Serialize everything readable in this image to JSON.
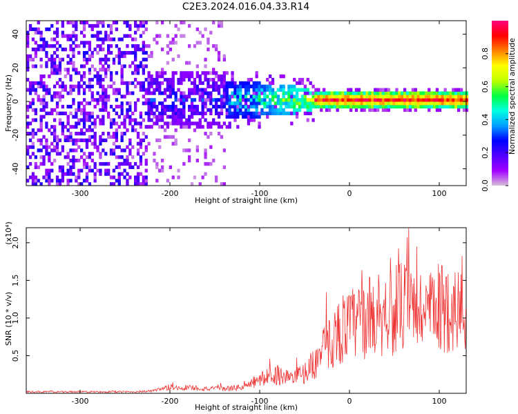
{
  "title": "C2E3.2024.016.04.33.R14",
  "chart_data": [
    {
      "type": "heatmap",
      "xlabel": "Height of straight line (km)",
      "ylabel": "Frequency (Hz)",
      "xlim": [
        -360,
        130
      ],
      "ylim": [
        -50,
        48
      ],
      "xticks": [
        -300,
        -200,
        -100,
        0,
        100
      ],
      "yticks": [
        -40,
        -20,
        0,
        20,
        40
      ],
      "colorbar": {
        "label": "Normalized spectral amplitude",
        "range": [
          0.0,
          1.0
        ],
        "ticks": [
          0.0,
          0.2,
          0.4,
          0.6,
          0.8
        ],
        "colors": [
          "#d8bfd8",
          "#a000ff",
          "#5000ff",
          "#0000ff",
          "#00a0ff",
          "#00ffe0",
          "#00ff40",
          "#c0ff00",
          "#ffff00",
          "#ff8000",
          "#ff0000",
          "#ff0080"
        ]
      }
    },
    {
      "type": "line",
      "xlabel": "Height of straight line (km)",
      "ylabel": "SNR (10 * v/v)",
      "yscale_label": "(x10⁴)",
      "xlim": [
        -360,
        130
      ],
      "ylim": [
        0,
        2.2
      ],
      "xticks": [
        -300,
        -200,
        -100,
        0,
        100
      ],
      "yticks": [
        0.5,
        1.0,
        1.5,
        2.0
      ],
      "ytick_labels": [
        "0.5",
        "1.0",
        "1.5",
        "2.0"
      ],
      "line_color": "#ee3333",
      "series": [
        {
          "x": [
            -360,
            -340,
            -320,
            -300,
            -280,
            -260,
            -240,
            -220,
            -210,
            -200,
            -190,
            -180,
            -170,
            -160,
            -150,
            -140,
            -130,
            -120,
            -110,
            -100,
            -90,
            -80,
            -70,
            -60,
            -50,
            -40,
            -30,
            -20,
            -10,
            0,
            10,
            20,
            30,
            40,
            50,
            60,
            70,
            80,
            90,
            100,
            110,
            120,
            130
          ],
          "y": [
            0.02,
            0.02,
            0.02,
            0.02,
            0.02,
            0.02,
            0.02,
            0.03,
            0.05,
            0.08,
            0.07,
            0.08,
            0.07,
            0.06,
            0.06,
            0.06,
            0.07,
            0.08,
            0.12,
            0.18,
            0.22,
            0.25,
            0.22,
            0.2,
            0.28,
            0.38,
            0.55,
            0.7,
            0.85,
            0.9,
            0.95,
            1.0,
            1.05,
            1.1,
            1.1,
            1.15,
            1.1,
            1.12,
            1.05,
            1.1,
            1.15,
            1.1,
            1.1
          ]
        }
      ]
    }
  ]
}
